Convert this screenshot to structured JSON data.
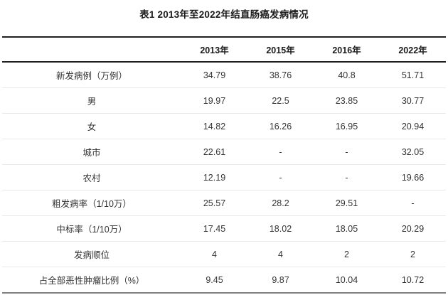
{
  "title": "表1 2013年至2022年结直肠癌发病情况",
  "table": {
    "columns": [
      "",
      "2013年",
      "2015年",
      "2016年",
      "2022年"
    ],
    "rows": [
      {
        "label": "新发病例（万例）",
        "values": [
          "34.79",
          "38.76",
          "40.8",
          "51.71"
        ]
      },
      {
        "label": "男",
        "values": [
          "19.97",
          "22.5",
          "23.85",
          "30.77"
        ]
      },
      {
        "label": "女",
        "values": [
          "14.82",
          "16.26",
          "16.95",
          "20.94"
        ]
      },
      {
        "label": "城市",
        "values": [
          "22.61",
          "-",
          "-",
          "32.05"
        ]
      },
      {
        "label": "农村",
        "values": [
          "12.19",
          "-",
          "-",
          "19.66"
        ]
      },
      {
        "label": "粗发病率（1/10万）",
        "values": [
          "25.57",
          "28.2",
          "29.51",
          "-"
        ]
      },
      {
        "label": "中标率（1/10万）",
        "values": [
          "17.45",
          "18.02",
          "18.05",
          "20.29"
        ]
      },
      {
        "label": "发病顺位",
        "values": [
          "4",
          "4",
          "2",
          "2"
        ]
      },
      {
        "label": "占全部恶性肿瘤比例（%）",
        "values": [
          "9.45",
          "9.87",
          "10.04",
          "10.72"
        ]
      }
    ]
  },
  "chart_data": {
    "type": "table",
    "title": "表1 2013年至2022年结直肠癌发病情况",
    "columns": [
      "2013年",
      "2015年",
      "2016年",
      "2022年"
    ],
    "rows": [
      {
        "label": "新发病例（万例）",
        "values": [
          34.79,
          38.76,
          40.8,
          51.71
        ]
      },
      {
        "label": "男",
        "values": [
          19.97,
          22.5,
          23.85,
          30.77
        ]
      },
      {
        "label": "女",
        "values": [
          14.82,
          16.26,
          16.95,
          20.94
        ]
      },
      {
        "label": "城市",
        "values": [
          22.61,
          null,
          null,
          32.05
        ]
      },
      {
        "label": "农村",
        "values": [
          12.19,
          null,
          null,
          19.66
        ]
      },
      {
        "label": "粗发病率（1/10万）",
        "values": [
          25.57,
          28.2,
          29.51,
          null
        ]
      },
      {
        "label": "中标率（1/10万）",
        "values": [
          17.45,
          18.02,
          18.05,
          20.29
        ]
      },
      {
        "label": "发病顺位",
        "values": [
          4,
          4,
          2,
          2
        ]
      },
      {
        "label": "占全部恶性肿瘤比例（%）",
        "values": [
          9.45,
          9.87,
          10.04,
          10.72
        ]
      }
    ],
    "missing_value_marker": "-"
  },
  "colors": {
    "background": "#ffffff",
    "heading_text": "#1a1a1a",
    "body_text": "#333333",
    "rule_dark": "#1f1f1f",
    "rule_bottom": "#808080",
    "row_separator": "#e8e8e8"
  }
}
